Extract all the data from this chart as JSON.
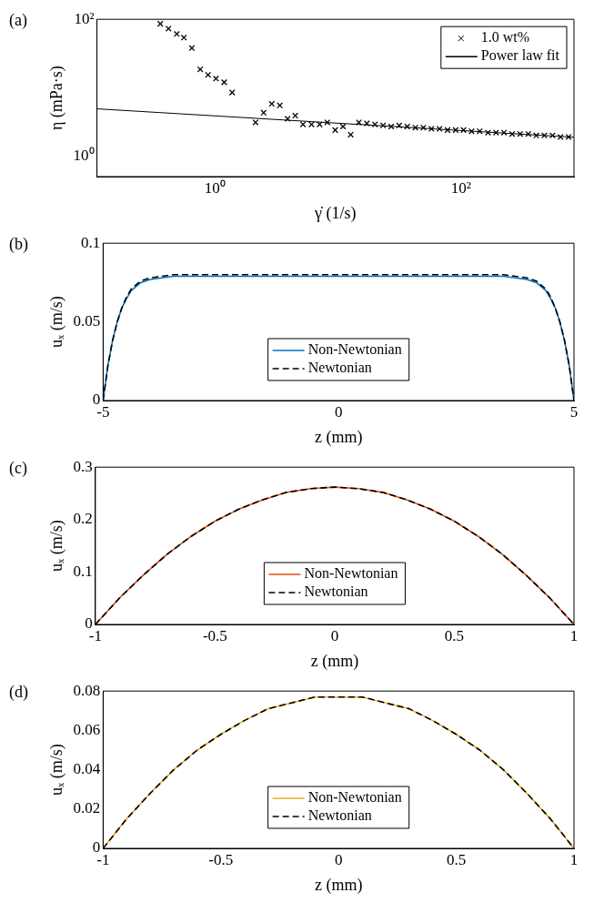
{
  "chart_data": [
    {
      "type": "scatter",
      "annotations": [
        "(a)"
      ],
      "xlabel": "γ̇ (1/s)",
      "ylabel": "η (mPa·s)",
      "log": "xy",
      "xlim": [
        0.11,
        830
      ],
      "ylim": [
        0.5,
        100
      ],
      "xticks": [
        {
          "value": 1,
          "label": "10⁰"
        },
        {
          "value": 100,
          "label": "10²"
        }
      ],
      "yticks": [
        {
          "value": 1,
          "label": "10⁰"
        },
        {
          "value": 100,
          "label": "10²"
        }
      ],
      "legend": "top right",
      "series": [
        {
          "name": "1.0 wt%",
          "color": "#000000",
          "marker": "cross",
          "x": [
            0.36,
            0.42,
            0.49,
            0.56,
            0.65,
            0.76,
            0.88,
            1.02,
            1.19,
            1.38,
            2.14,
            2.49,
            2.9,
            3.37,
            3.9,
            4.5,
            5.2,
            6.1,
            7.1,
            8.2,
            9.5,
            11,
            12.7,
            14.8,
            17.2,
            20,
            23.3,
            27.1,
            31.5,
            36.6,
            42.6,
            49.5,
            57.6,
            67,
            77.9,
            90.6,
            105,
            122,
            142,
            166,
            193,
            224,
            261,
            303,
            353,
            410,
            477,
            555,
            645,
            750
          ],
          "values": [
            86,
            73,
            61,
            54,
            38,
            18.5,
            15.4,
            13.6,
            12,
            8.5,
            3.1,
            4.3,
            5.8,
            5.5,
            3.5,
            3.9,
            2.9,
            2.9,
            2.9,
            3.1,
            2.4,
            2.7,
            2.05,
            3.1,
            3.0,
            2.9,
            2.8,
            2.7,
            2.8,
            2.7,
            2.6,
            2.6,
            2.5,
            2.5,
            2.4,
            2.4,
            2.4,
            2.3,
            2.3,
            2.2,
            2.2,
            2.2,
            2.1,
            2.1,
            2.1,
            2.0,
            2.0,
            2.0,
            1.9,
            1.9
          ]
        },
        {
          "name": "Power law fit",
          "type": "line",
          "color": "#000000",
          "x": [
            0.11,
            830
          ],
          "values": [
            4.9,
            1.88
          ]
        }
      ]
    },
    {
      "type": "line",
      "annotations": [
        "(b)"
      ],
      "xlabel": "z (mm)",
      "ylabel": "uₓ (m/s)",
      "xlim": [
        -5,
        5
      ],
      "ylim": [
        0,
        0.1
      ],
      "xticks": [
        -5,
        0,
        5
      ],
      "yticks": [
        0,
        0.05,
        0.1
      ],
      "legend": "bottom",
      "x": [
        -5,
        -4.9,
        -4.8,
        -4.7,
        -4.6,
        -4.5,
        -4.4,
        -4.2,
        -4,
        -3.5,
        -3,
        -2,
        -1,
        0,
        1,
        2,
        3,
        3.5,
        4,
        4.2,
        4.4,
        4.5,
        4.6,
        4.7,
        4.8,
        4.9,
        5
      ],
      "series": [
        {
          "name": "Non-Newtonian",
          "color": "#0072bd",
          "values": [
            0,
            0.022,
            0.038,
            0.05,
            0.059,
            0.065,
            0.07,
            0.075,
            0.077,
            0.079,
            0.079,
            0.079,
            0.079,
            0.079,
            0.079,
            0.079,
            0.079,
            0.079,
            0.077,
            0.075,
            0.07,
            0.065,
            0.059,
            0.05,
            0.038,
            0.022,
            0
          ]
        },
        {
          "name": "Newtonian",
          "color": "#000000",
          "line_style": "dashed",
          "values": [
            0,
            0.022,
            0.038,
            0.05,
            0.059,
            0.066,
            0.071,
            0.076,
            0.078,
            0.08,
            0.08,
            0.08,
            0.08,
            0.08,
            0.08,
            0.08,
            0.08,
            0.08,
            0.078,
            0.076,
            0.071,
            0.066,
            0.059,
            0.05,
            0.038,
            0.022,
            0
          ]
        }
      ]
    },
    {
      "type": "line",
      "annotations": [
        "(c)"
      ],
      "xlabel": "z (mm)",
      "ylabel": "uₓ (m/s)",
      "xlim": [
        -1,
        1
      ],
      "ylim": [
        0,
        0.3
      ],
      "xticks": [
        -1,
        -0.5,
        0,
        0.5,
        1
      ],
      "yticks": [
        0,
        0.1,
        0.2,
        0.3
      ],
      "legend": "bottom",
      "x": [
        -1,
        -0.9,
        -0.8,
        -0.7,
        -0.6,
        -0.5,
        -0.4,
        -0.3,
        -0.2,
        -0.1,
        0,
        0.1,
        0.2,
        0.3,
        0.4,
        0.5,
        0.6,
        0.7,
        0.8,
        0.9,
        1
      ],
      "series": [
        {
          "name": "Non-Newtonian",
          "color": "#d95319",
          "values": [
            0,
            0.05,
            0.094,
            0.134,
            0.168,
            0.197,
            0.22,
            0.238,
            0.252,
            0.259,
            0.262,
            0.259,
            0.252,
            0.238,
            0.22,
            0.197,
            0.168,
            0.134,
            0.094,
            0.05,
            0
          ]
        },
        {
          "name": "Newtonian",
          "color": "#000000",
          "line_style": "dashed",
          "values": [
            0,
            0.05,
            0.094,
            0.134,
            0.168,
            0.197,
            0.22,
            0.238,
            0.252,
            0.259,
            0.262,
            0.259,
            0.252,
            0.238,
            0.22,
            0.197,
            0.168,
            0.134,
            0.094,
            0.05,
            0
          ]
        }
      ]
    },
    {
      "type": "line",
      "annotations": [
        "(d)"
      ],
      "xlabel": "z (mm)",
      "ylabel": "uₓ (m/s)",
      "xlim": [
        -1,
        1
      ],
      "ylim": [
        0,
        0.08
      ],
      "xticks": [
        -1,
        -0.5,
        0,
        0.5,
        1
      ],
      "yticks": [
        0,
        0.02,
        0.04,
        0.06,
        0.08
      ],
      "legend": "bottom",
      "x": [
        -1,
        -0.9,
        -0.8,
        -0.7,
        -0.6,
        -0.5,
        -0.4,
        -0.3,
        -0.2,
        -0.1,
        0,
        0.1,
        0.2,
        0.3,
        0.4,
        0.5,
        0.6,
        0.7,
        0.8,
        0.9,
        1
      ],
      "series": [
        {
          "name": "Non-Newtonian",
          "color": "#edb120",
          "values": [
            0,
            0.015,
            0.028,
            0.04,
            0.05,
            0.058,
            0.065,
            0.071,
            0.074,
            0.077,
            0.077,
            0.077,
            0.074,
            0.071,
            0.065,
            0.058,
            0.05,
            0.04,
            0.028,
            0.015,
            0
          ]
        },
        {
          "name": "Newtonian",
          "color": "#000000",
          "line_style": "dashed",
          "values": [
            0,
            0.015,
            0.028,
            0.04,
            0.05,
            0.058,
            0.065,
            0.071,
            0.074,
            0.077,
            0.077,
            0.077,
            0.074,
            0.071,
            0.065,
            0.058,
            0.05,
            0.04,
            0.028,
            0.015,
            0
          ]
        }
      ]
    }
  ]
}
